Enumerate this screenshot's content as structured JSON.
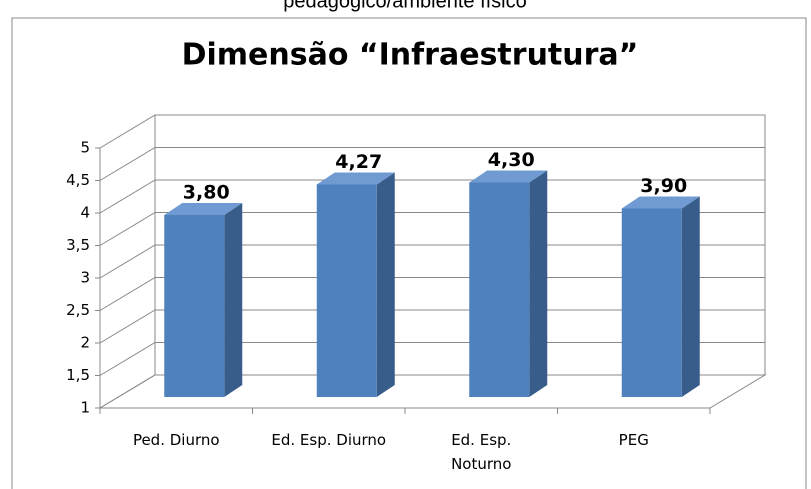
{
  "header_text": "pedagógico/ambiente físico",
  "chart_data": {
    "type": "bar3d",
    "title": "Dimensão “Infraestrutura”",
    "categories": [
      "Ped. Diurno",
      "Ed. Esp. Diurno",
      "Ed. Esp. Noturno",
      "PEG"
    ],
    "values": [
      3.8,
      4.27,
      4.3,
      3.9
    ],
    "value_labels": [
      "3,80",
      "4,27",
      "4,30",
      "3,90"
    ],
    "color": "#4f81bd",
    "ylim": [
      1,
      5
    ],
    "yticks": [
      1,
      {
        "value": 1.5,
        "label": "1,5"
      },
      2,
      {
        "value": 2.5,
        "label": "2,5"
      },
      3,
      {
        "value": 3.5,
        "label": "3,5"
      },
      4,
      {
        "value": 4.5,
        "label": "4,5"
      },
      5
    ],
    "grid": true
  }
}
